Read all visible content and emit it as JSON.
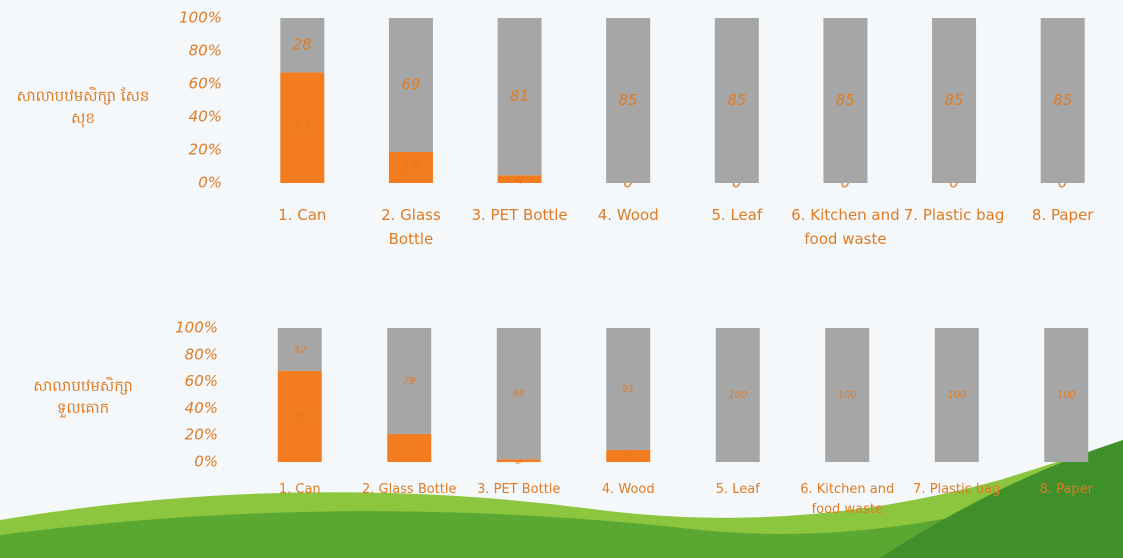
{
  "chart_data": [
    {
      "type": "bar",
      "stack": "percent",
      "ylabel": "សាលាបឋមសិក្សា សែនសុខ",
      "categories": [
        "1. Can",
        "2. Glass Bottle",
        "3. PET Bottle",
        "4. Wood",
        "5. Leaf",
        "6. Kitchen and food waste",
        "7. Plastic bag",
        "8. Paper"
      ],
      "series": [
        {
          "color": "#f47c20",
          "values": [
            57,
            16,
            4,
            0,
            0,
            0,
            0,
            0
          ]
        },
        {
          "color": "#a6a6a6",
          "values": [
            28,
            69,
            81,
            85,
            85,
            85,
            85,
            85
          ]
        }
      ],
      "ylim": [
        0,
        100
      ],
      "yticks": [
        {
          "value": 0,
          "label": "0%"
        },
        {
          "value": 20,
          "label": "20%"
        },
        {
          "value": 40,
          "label": "40%"
        },
        {
          "value": 60,
          "label": "60%"
        },
        {
          "value": 80,
          "label": "80%"
        },
        {
          "value": 100,
          "label": "100%"
        }
      ]
    },
    {
      "type": "bar",
      "stack": "percent",
      "ylabel": "សាលាបឋមសិក្សា ទួលគោក",
      "categories": [
        "1. Can",
        "2. Glass Bottle",
        "3. PET Bottle",
        "4. Wood",
        "5. Leaf",
        "6. Kitchen and food waste",
        "7. Plastic bag",
        "8. Paper"
      ],
      "series": [
        {
          "color": "#f47c20",
          "values": [
            68,
            21,
            2,
            9,
            0,
            0,
            0,
            0
          ],
          "value_labels": [
            "68",
            "21",
            "2",
            "9",
            null,
            null,
            null,
            null
          ]
        },
        {
          "color": "#a6a6a6",
          "values": [
            32,
            79,
            98,
            91,
            100,
            100,
            100,
            100
          ]
        }
      ],
      "ylim": [
        0,
        100
      ],
      "yticks": [
        {
          "value": 0,
          "label": "0%"
        },
        {
          "value": 20,
          "label": "20%"
        },
        {
          "value": 40,
          "label": "40%"
        },
        {
          "value": 60,
          "label": "60%"
        },
        {
          "value": 80,
          "label": "80%"
        },
        {
          "value": 100,
          "label": "100%"
        }
      ]
    }
  ]
}
